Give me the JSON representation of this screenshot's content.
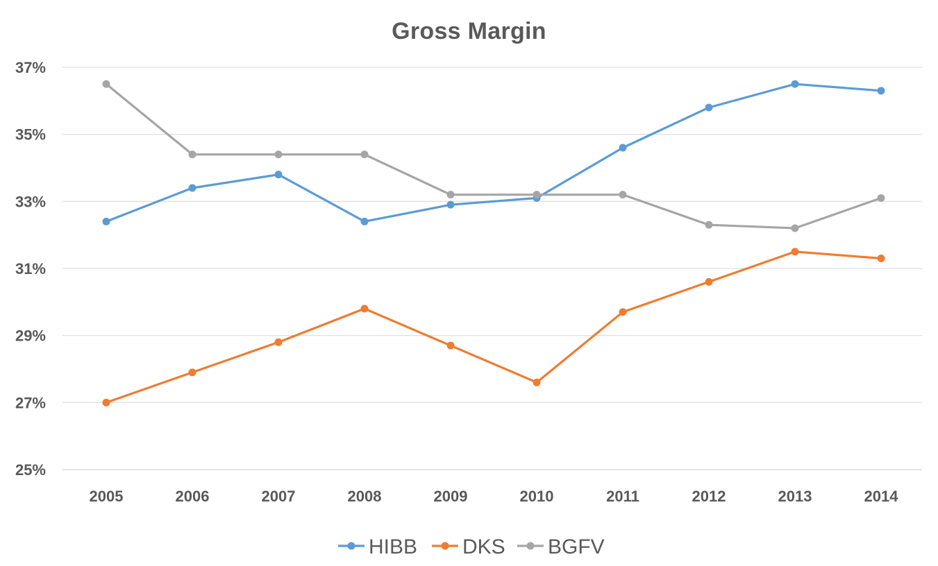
{
  "chart_data": {
    "type": "line",
    "title": "Gross Margin",
    "xlabel": "",
    "ylabel": "",
    "categories": [
      "2005",
      "2006",
      "2007",
      "2008",
      "2009",
      "2010",
      "2011",
      "2012",
      "2013",
      "2014"
    ],
    "ylim": [
      25,
      37
    ],
    "yticks": [
      25,
      27,
      29,
      31,
      33,
      35,
      37
    ],
    "ytick_labels": [
      "25%",
      "27%",
      "29%",
      "31%",
      "33%",
      "35%",
      "37%"
    ],
    "grid": true,
    "legend_position": "bottom",
    "series": [
      {
        "name": "HIBB",
        "color": "#5B9BD5",
        "values": [
          32.4,
          33.4,
          33.8,
          32.4,
          32.9,
          33.1,
          34.6,
          35.8,
          36.5,
          36.3
        ]
      },
      {
        "name": "DKS",
        "color": "#ED7D31",
        "values": [
          27.0,
          27.9,
          28.8,
          29.8,
          28.7,
          27.6,
          29.7,
          30.6,
          31.5,
          31.3
        ]
      },
      {
        "name": "BGFV",
        "color": "#A5A5A5",
        "values": [
          36.5,
          34.4,
          34.4,
          34.4,
          33.2,
          33.2,
          33.2,
          32.3,
          32.2,
          33.1
        ]
      }
    ]
  }
}
